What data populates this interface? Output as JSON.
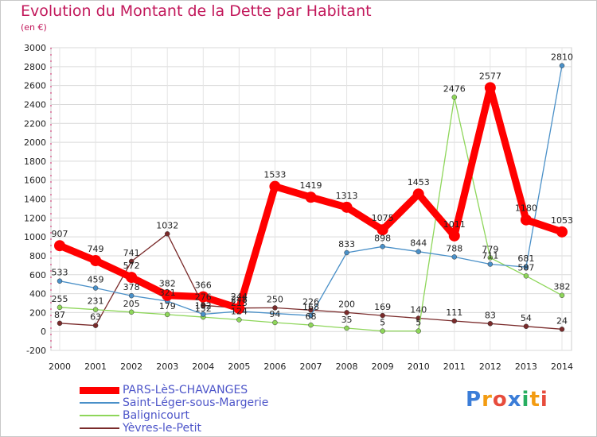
{
  "header": {
    "title": "Evolution du Montant de la Dette par Habitant",
    "subtitle": "(en €)"
  },
  "logo": {
    "text": "Proxiti"
  },
  "chart_data": {
    "type": "line",
    "title": "Evolution du Montant de la Dette par Habitant",
    "subtitle": "(en €)",
    "xlabel": "",
    "ylabel": "",
    "ylim": [
      -200,
      3000
    ],
    "yticks": [
      -200,
      0,
      200,
      400,
      600,
      800,
      1000,
      1200,
      1400,
      1600,
      1800,
      2000,
      2200,
      2400,
      2600,
      2800,
      3000
    ],
    "categories": [
      "2000",
      "2001",
      "2002",
      "2003",
      "2004",
      "2005",
      "2006",
      "2007",
      "2008",
      "2009",
      "2010",
      "2011",
      "2012",
      "2013",
      "2014"
    ],
    "grid": true,
    "legend_position": "bottom-left",
    "series": [
      {
        "name": "PARS-LèS-CHAVANGES",
        "color": "#ff0000",
        "values": [
          907,
          749,
          572,
          382,
          366,
          244,
          1533,
          1419,
          1313,
          1075,
          1453,
          1011,
          2577,
          1180,
          1053
        ],
        "labels": [
          "907",
          "749",
          "572",
          "382",
          "366",
          "244",
          "1533",
          "1419",
          "1313",
          "1075",
          "1453",
          "1011",
          "2577",
          "1180",
          "1053"
        ]
      },
      {
        "name": "Saint-Léger-sous-Margerie",
        "color": "#4a90c8",
        "values": [
          533,
          459,
          378,
          321,
          182,
          213,
          null,
          168,
          833,
          898,
          844,
          788,
          711,
          681,
          2810
        ],
        "labels": [
          "533",
          "459",
          "378",
          "321",
          "182",
          "213",
          "",
          "168",
          "833",
          "898",
          "844",
          "788",
          "711",
          "681",
          "2810"
        ]
      },
      {
        "name": "Balignicourt",
        "color": "#8ed65a",
        "values": [
          255,
          231,
          205,
          179,
          152,
          124,
          94,
          68,
          35,
          5,
          5,
          2476,
          779,
          587,
          382
        ],
        "labels": [
          "255",
          "231",
          "205",
          "179",
          "152",
          "124",
          "94",
          "68",
          "35",
          "5",
          "5",
          "2476",
          "779",
          "587",
          "382"
        ]
      },
      {
        "name": "Yèvres-le-Petit",
        "color": "#7a2b2b",
        "values": [
          87,
          63,
          741,
          1032,
          276,
          248,
          250,
          226,
          200,
          169,
          140,
          111,
          83,
          54,
          24
        ],
        "labels": [
          "87",
          "63",
          "741",
          "1032",
          "276",
          "248",
          "250",
          "226",
          "200",
          "169",
          "140",
          "111",
          "83",
          "54",
          "24"
        ]
      }
    ]
  }
}
